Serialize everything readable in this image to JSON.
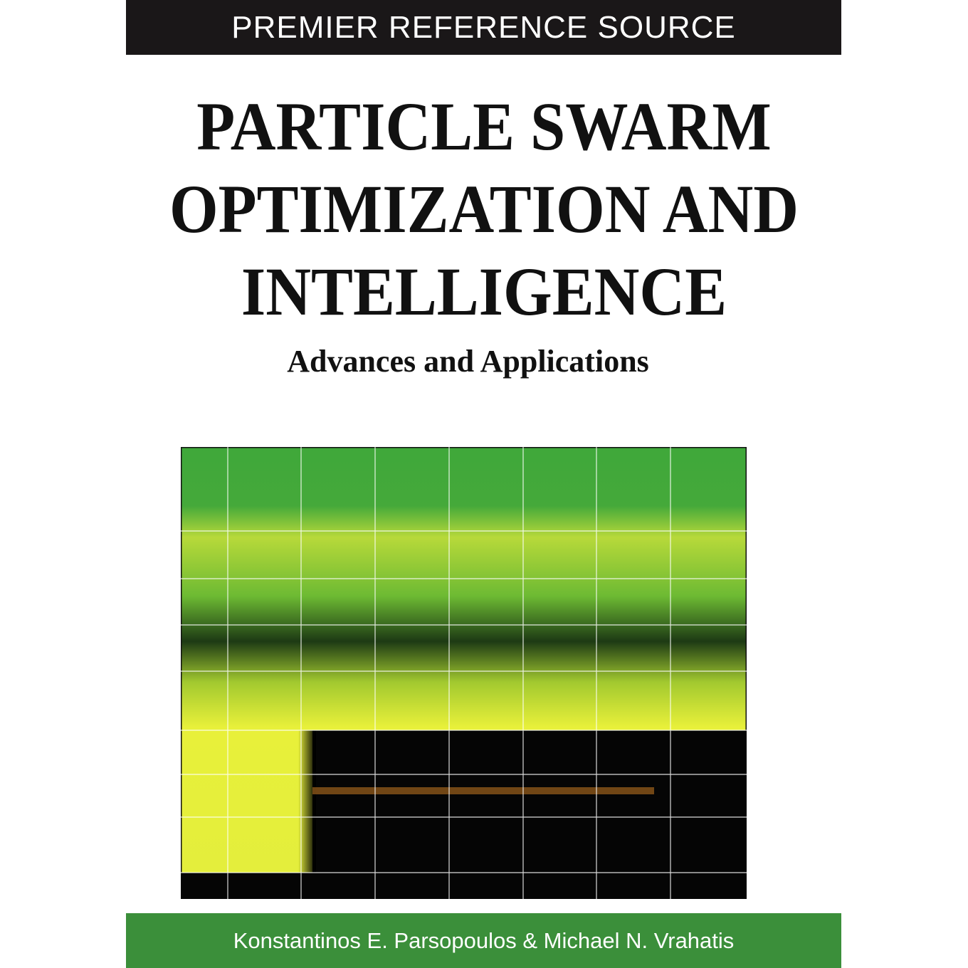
{
  "header": {
    "series_label": "PREMIER REFERENCE SOURCE"
  },
  "title": {
    "lines": [
      "PARTICLE SWARM",
      "OPTIMIZATION AND",
      "INTELLIGENCE"
    ]
  },
  "subtitle": "Advances and Applications",
  "authors": "Konstantinos E. Parsopoulos & Michael N. Vrahatis"
}
